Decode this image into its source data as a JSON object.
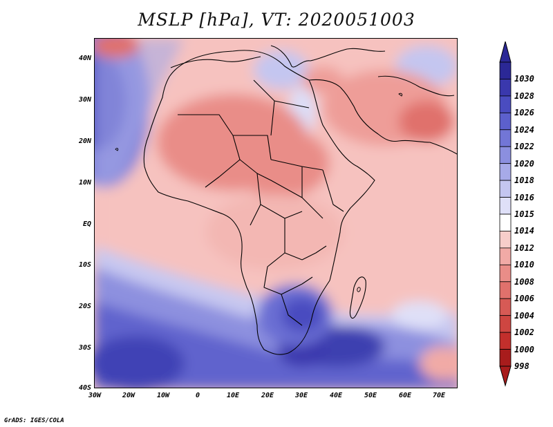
{
  "title": "MSLP [hPa], VT: 2020051003",
  "credit": "GrADS: IGES/COLA",
  "y_axis_labels": [
    "40N",
    "30N",
    "20N",
    "10N",
    "EQ",
    "10S",
    "20S",
    "30S",
    "40S"
  ],
  "x_axis_labels": [
    "30W",
    "20W",
    "10W",
    "0",
    "10E",
    "20E",
    "30E",
    "40E",
    "50E",
    "60E",
    "70E"
  ],
  "colorbar": {
    "labels": [
      "1030",
      "1028",
      "1026",
      "1024",
      "1022",
      "1020",
      "1018",
      "1016",
      "1015",
      "1014",
      "1012",
      "1010",
      "1008",
      "1006",
      "1004",
      "1002",
      "1000",
      "998"
    ],
    "colors": [
      "#2b2896",
      "#3a38ad",
      "#4a4cc0",
      "#5c60cc",
      "#7276d6",
      "#8b8fdf",
      "#a7aae8",
      "#c4c6f0",
      "#dfe0f8",
      "#ffffff",
      "#f7cdca",
      "#f1aaa6",
      "#e98d88",
      "#e0716c",
      "#d75a55",
      "#ce4641",
      "#c22f2c",
      "#a81c1c"
    ]
  }
}
